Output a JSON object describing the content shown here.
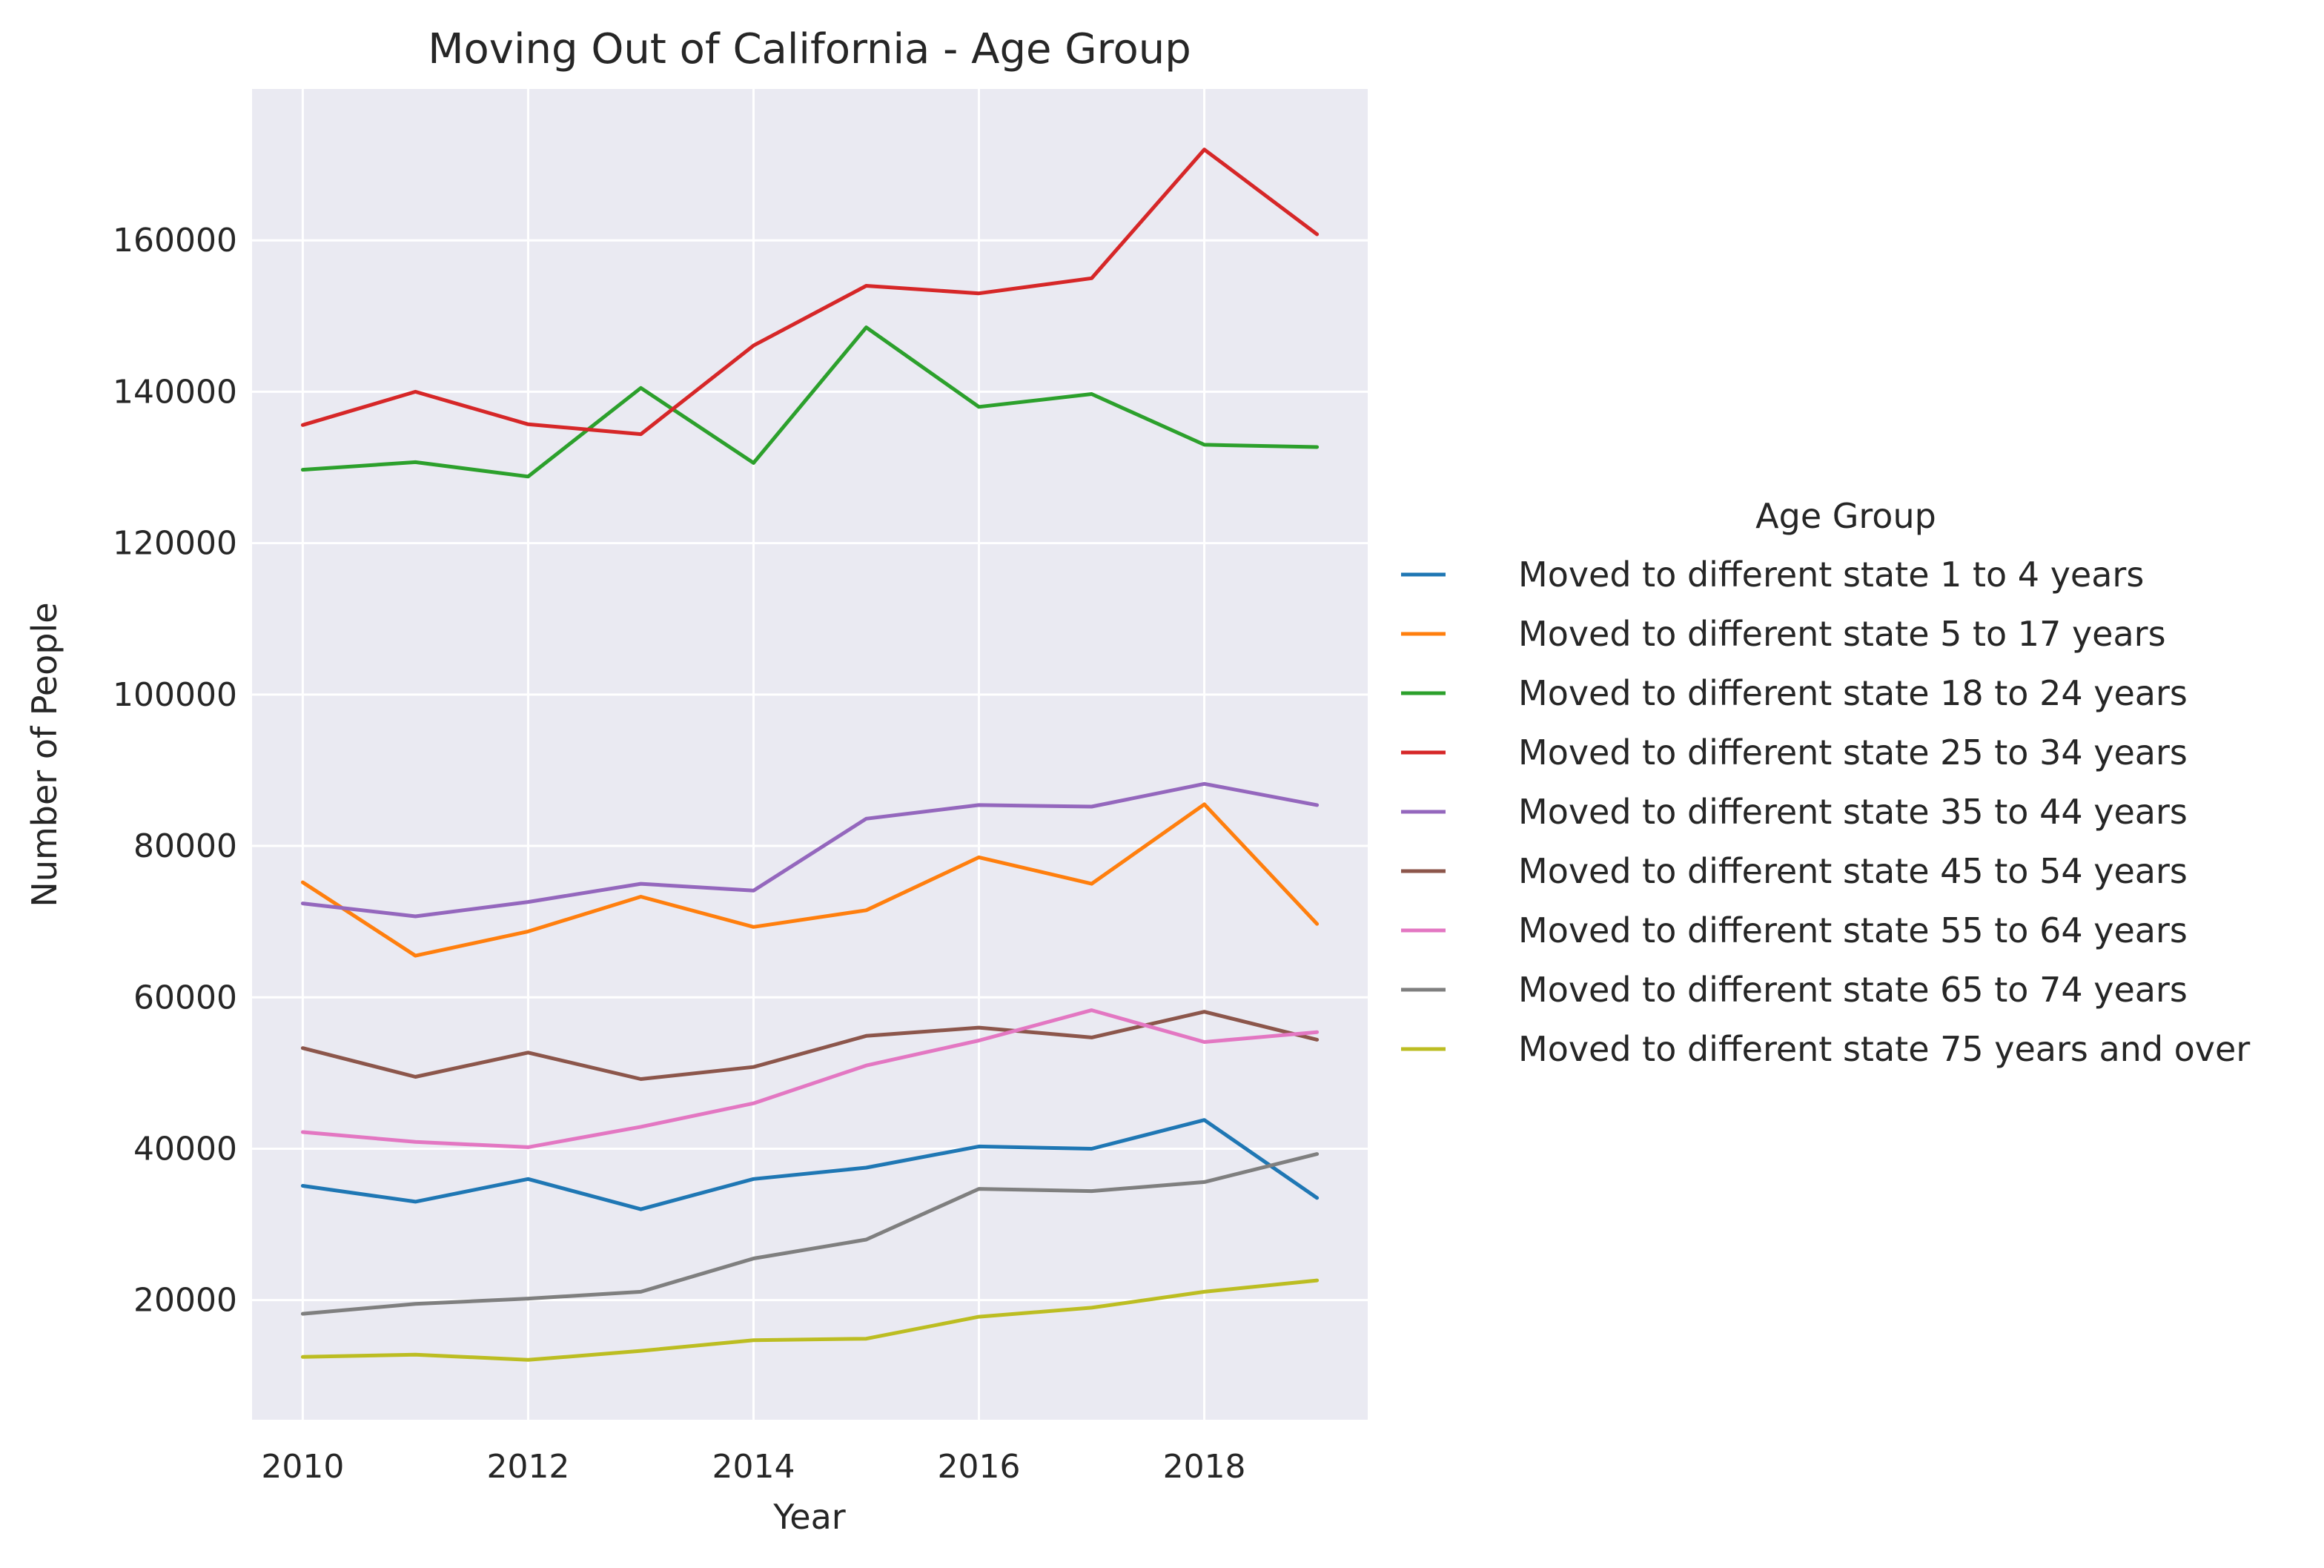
{
  "chart_data": {
    "type": "line",
    "title": "Moving Out of California - Age Group",
    "xlabel": "Year",
    "ylabel": "Number of People",
    "xlim": [
      2009.55,
      2019.45
    ],
    "ylim": [
      4200,
      180000
    ],
    "xticks": [
      2010,
      2012,
      2014,
      2016,
      2018
    ],
    "yticks": [
      20000,
      40000,
      60000,
      80000,
      100000,
      120000,
      140000,
      160000
    ],
    "grid": true,
    "legend_title": "Age Group",
    "legend_position": "right",
    "x": [
      2010,
      2011,
      2012,
      2013,
      2014,
      2015,
      2016,
      2017,
      2018,
      2019
    ],
    "series": [
      {
        "name": "Moved to different state 1 to 4 years",
        "color": "#1f77b4",
        "values": [
          35100,
          33000,
          36000,
          32000,
          36000,
          37500,
          40300,
          40000,
          43800,
          33500
        ]
      },
      {
        "name": "Moved to different state 5 to 17 years",
        "color": "#ff7f0e",
        "values": [
          75200,
          65500,
          68700,
          73300,
          69300,
          71500,
          78500,
          75000,
          85500,
          69700
        ]
      },
      {
        "name": "Moved to different state 18 to 24 years",
        "color": "#2ca02c",
        "values": [
          129700,
          130700,
          128800,
          140500,
          130600,
          148500,
          138000,
          139700,
          133000,
          132700
        ]
      },
      {
        "name": "Moved to different state 25 to 34 years",
        "color": "#d62728",
        "values": [
          135600,
          140000,
          135700,
          134400,
          146100,
          154000,
          153000,
          155000,
          172000,
          160800
        ]
      },
      {
        "name": "Moved to different state 35 to 44 years",
        "color": "#9467bd",
        "values": [
          72400,
          70700,
          72600,
          75000,
          74100,
          83600,
          85400,
          85200,
          88200,
          85400
        ]
      },
      {
        "name": "Moved to different state 45 to 54 years",
        "color": "#8c564b",
        "values": [
          53300,
          49500,
          52700,
          49200,
          50800,
          54900,
          56000,
          54700,
          58100,
          54400
        ]
      },
      {
        "name": "Moved to different state 55 to 64 years",
        "color": "#e377c2",
        "values": [
          42200,
          40900,
          40200,
          42900,
          46000,
          51000,
          54300,
          58300,
          54100,
          55400
        ]
      },
      {
        "name": "Moved to different state 65 to 74 years",
        "color": "#7f7f7f",
        "values": [
          18200,
          19500,
          20200,
          21100,
          25500,
          28000,
          34700,
          34400,
          35600,
          39300
        ]
      },
      {
        "name": "Moved to different state 75 years and over",
        "color": "#bcbd22",
        "values": [
          12500,
          12800,
          12100,
          13300,
          14700,
          14900,
          17800,
          19000,
          21100,
          22600
        ]
      }
    ]
  },
  "colors": {
    "plot_background": "#eaeaf2",
    "grid": "#ffffff",
    "text": "#262626"
  }
}
